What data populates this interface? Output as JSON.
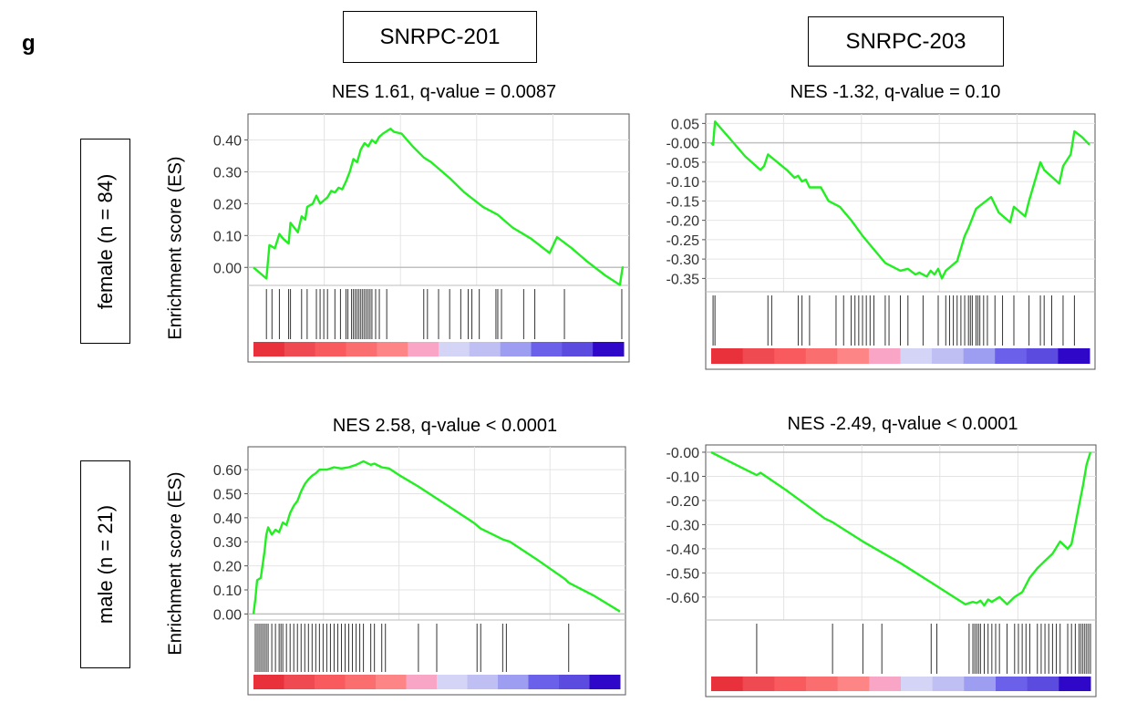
{
  "panel_label": "g",
  "columns": [
    "SNRPC-201",
    "SNRPC-203"
  ],
  "rows": [
    "female (n = 84)",
    "male (n = 21)"
  ],
  "chart_data": [
    {
      "type": "line",
      "column": "SNRPC-201",
      "row": "female (n = 84)",
      "title": "NES 1.61, q-value = 0.0087",
      "ylabel": "Enrichment score (ES)",
      "yticks": [
        "0.40",
        "0.30",
        "0.20",
        "0.10",
        "0.00"
      ],
      "ylim": [
        -0.045,
        0.47
      ],
      "x": [
        0,
        0.035,
        0.043,
        0.058,
        0.07,
        0.08,
        0.095,
        0.1,
        0.12,
        0.13,
        0.14,
        0.145,
        0.16,
        0.17,
        0.18,
        0.19,
        0.2,
        0.21,
        0.22,
        0.23,
        0.24,
        0.25,
        0.26,
        0.27,
        0.28,
        0.29,
        0.3,
        0.31,
        0.32,
        0.33,
        0.34,
        0.35,
        0.37,
        0.38,
        0.4,
        0.43,
        0.46,
        0.48,
        0.53,
        0.57,
        0.62,
        0.66,
        0.7,
        0.75,
        0.8,
        0.82,
        0.86,
        0.9,
        0.95,
        0.99,
        0.997,
        1.0
      ],
      "values": [
        0.0,
        -0.035,
        0.07,
        0.06,
        0.105,
        0.09,
        0.075,
        0.14,
        0.11,
        0.16,
        0.15,
        0.19,
        0.2,
        0.225,
        0.2,
        0.21,
        0.22,
        0.24,
        0.235,
        0.25,
        0.245,
        0.27,
        0.3,
        0.34,
        0.33,
        0.37,
        0.39,
        0.38,
        0.4,
        0.39,
        0.41,
        0.42,
        0.435,
        0.425,
        0.42,
        0.38,
        0.345,
        0.33,
        0.28,
        0.235,
        0.19,
        0.165,
        0.125,
        0.09,
        0.045,
        0.095,
        0.06,
        0.02,
        -0.025,
        -0.055,
        0.0,
        0.0
      ],
      "hits": [
        0.035,
        0.05,
        0.07,
        0.095,
        0.1,
        0.13,
        0.145,
        0.17,
        0.18,
        0.19,
        0.2,
        0.22,
        0.235,
        0.25,
        0.255,
        0.265,
        0.27,
        0.275,
        0.28,
        0.285,
        0.29,
        0.295,
        0.3,
        0.305,
        0.31,
        0.315,
        0.32,
        0.33,
        0.34,
        0.36,
        0.46,
        0.47,
        0.5,
        0.53,
        0.56,
        0.58,
        0.59,
        0.61,
        0.655,
        0.66,
        0.67,
        0.73,
        0.76,
        0.84,
        0.995
      ],
      "rank_colors": [
        "#e8313a",
        "#ef4a52",
        "#f85a5e",
        "#fb6e70",
        "#fd8585",
        "#f9a6c6",
        "#d4d4f6",
        "#bfbff3",
        "#9d9df2",
        "#6a60ea",
        "#5b4bde",
        "#2f07c8"
      ]
    },
    {
      "type": "line",
      "column": "SNRPC-203",
      "row": "female (n = 84)",
      "title": "NES -1.32, q-value = 0.10",
      "ylabel": "",
      "yticks": [
        "0.05",
        "-0.00",
        "-0.05",
        "-0.10",
        "-0.15",
        "-0.20",
        "-0.25",
        "-0.30",
        "-0.35"
      ],
      "ylim": [
        -0.375,
        0.065
      ],
      "x": [
        0,
        0.005,
        0.01,
        0.05,
        0.09,
        0.13,
        0.14,
        0.15,
        0.2,
        0.22,
        0.23,
        0.24,
        0.25,
        0.26,
        0.29,
        0.31,
        0.34,
        0.37,
        0.4,
        0.43,
        0.46,
        0.5,
        0.52,
        0.54,
        0.55,
        0.57,
        0.58,
        0.59,
        0.6,
        0.61,
        0.62,
        0.65,
        0.67,
        0.68,
        0.7,
        0.74,
        0.76,
        0.79,
        0.8,
        0.83,
        0.84,
        0.87,
        0.88,
        0.92,
        0.93,
        0.95,
        0.96,
        0.98,
        1.0
      ],
      "values": [
        0.0,
        -0.005,
        0.055,
        0.01,
        -0.035,
        -0.07,
        -0.06,
        -0.03,
        -0.07,
        -0.09,
        -0.085,
        -0.1,
        -0.095,
        -0.115,
        -0.115,
        -0.15,
        -0.165,
        -0.2,
        -0.24,
        -0.275,
        -0.31,
        -0.33,
        -0.325,
        -0.34,
        -0.335,
        -0.345,
        -0.33,
        -0.34,
        -0.325,
        -0.35,
        -0.33,
        -0.305,
        -0.24,
        -0.22,
        -0.17,
        -0.14,
        -0.18,
        -0.205,
        -0.165,
        -0.19,
        -0.15,
        -0.05,
        -0.07,
        -0.105,
        -0.06,
        -0.03,
        0.03,
        0.015,
        -0.005
      ],
      "hits": [
        0.005,
        0.01,
        0.15,
        0.16,
        0.23,
        0.24,
        0.26,
        0.33,
        0.35,
        0.37,
        0.38,
        0.39,
        0.4,
        0.41,
        0.42,
        0.43,
        0.46,
        0.47,
        0.5,
        0.52,
        0.56,
        0.6,
        0.62,
        0.63,
        0.64,
        0.65,
        0.66,
        0.67,
        0.68,
        0.685,
        0.69,
        0.7,
        0.705,
        0.71,
        0.72,
        0.73,
        0.75,
        0.77,
        0.8,
        0.84,
        0.87,
        0.88,
        0.9,
        0.93,
        0.96
      ],
      "rank_colors": [
        "#e8313a",
        "#ef4a52",
        "#f85a5e",
        "#fb6e70",
        "#fd8585",
        "#f9a6c6",
        "#d4d4f6",
        "#bfbff3",
        "#9d9df2",
        "#6a60ea",
        "#5b4bde",
        "#2f07c8"
      ]
    },
    {
      "type": "line",
      "column": "SNRPC-201",
      "row": "male (n = 21)",
      "title": "NES 2.58, q-value < 0.0001",
      "ylabel": "Enrichment score (ES)",
      "yticks": [
        "0.60",
        "0.50",
        "0.40",
        "0.30",
        "0.20",
        "0.10",
        "0.00"
      ],
      "ylim": [
        -0.01,
        0.68
      ],
      "x": [
        0,
        0.005,
        0.01,
        0.02,
        0.03,
        0.035,
        0.04,
        0.05,
        0.06,
        0.07,
        0.08,
        0.09,
        0.1,
        0.11,
        0.12,
        0.13,
        0.14,
        0.15,
        0.16,
        0.17,
        0.18,
        0.2,
        0.22,
        0.24,
        0.26,
        0.28,
        0.3,
        0.32,
        0.33,
        0.35,
        0.37,
        0.4,
        0.45,
        0.5,
        0.55,
        0.6,
        0.62,
        0.68,
        0.7,
        0.77,
        0.85,
        0.86,
        0.93,
        1.0
      ],
      "values": [
        0.0,
        0.06,
        0.14,
        0.15,
        0.26,
        0.33,
        0.36,
        0.33,
        0.35,
        0.34,
        0.38,
        0.37,
        0.42,
        0.45,
        0.47,
        0.51,
        0.54,
        0.56,
        0.575,
        0.585,
        0.6,
        0.6,
        0.61,
        0.605,
        0.61,
        0.62,
        0.635,
        0.62,
        0.625,
        0.61,
        0.605,
        0.575,
        0.53,
        0.48,
        0.43,
        0.38,
        0.355,
        0.31,
        0.3,
        0.23,
        0.145,
        0.13,
        0.075,
        0.01
      ],
      "hits": [
        0.005,
        0.01,
        0.015,
        0.02,
        0.025,
        0.03,
        0.035,
        0.04,
        0.05,
        0.06,
        0.07,
        0.075,
        0.08,
        0.09,
        0.1,
        0.11,
        0.12,
        0.13,
        0.14,
        0.15,
        0.16,
        0.17,
        0.18,
        0.19,
        0.2,
        0.21,
        0.22,
        0.23,
        0.24,
        0.25,
        0.26,
        0.27,
        0.28,
        0.29,
        0.3,
        0.32,
        0.33,
        0.35,
        0.36,
        0.45,
        0.5,
        0.61,
        0.62,
        0.68,
        0.69,
        0.86
      ],
      "rank_colors": [
        "#e8313a",
        "#ef4a52",
        "#f85a5e",
        "#fb6e70",
        "#fd8585",
        "#f9a6c6",
        "#d4d4f6",
        "#bfbff3",
        "#9d9df2",
        "#6a60ea",
        "#5b4bde",
        "#2f07c8"
      ]
    },
    {
      "type": "line",
      "column": "SNRPC-203",
      "row": "male (n = 21)",
      "title": "NES -2.49, q-value < 0.0001",
      "ylabel": "",
      "yticks": [
        "-0.00",
        "-0.10",
        "-0.20",
        "-0.30",
        "-0.40",
        "-0.50",
        "-0.60"
      ],
      "ylim": [
        -0.68,
        0.015
      ],
      "x": [
        0,
        0.05,
        0.12,
        0.13,
        0.2,
        0.3,
        0.32,
        0.4,
        0.5,
        0.58,
        0.62,
        0.67,
        0.69,
        0.7,
        0.71,
        0.72,
        0.73,
        0.74,
        0.76,
        0.78,
        0.8,
        0.82,
        0.84,
        0.86,
        0.88,
        0.9,
        0.92,
        0.94,
        0.95,
        0.96,
        0.97,
        0.98,
        0.99,
        1.0
      ],
      "values": [
        0.0,
        -0.04,
        -0.095,
        -0.085,
        -0.16,
        -0.275,
        -0.29,
        -0.37,
        -0.46,
        -0.54,
        -0.58,
        -0.63,
        -0.62,
        -0.625,
        -0.615,
        -0.635,
        -0.61,
        -0.62,
        -0.6,
        -0.63,
        -0.6,
        -0.58,
        -0.52,
        -0.48,
        -0.45,
        -0.42,
        -0.37,
        -0.4,
        -0.38,
        -0.3,
        -0.22,
        -0.14,
        -0.05,
        0.0
      ],
      "hits": [
        0.12,
        0.32,
        0.4,
        0.45,
        0.58,
        0.595,
        0.68,
        0.69,
        0.695,
        0.7,
        0.705,
        0.71,
        0.72,
        0.73,
        0.74,
        0.75,
        0.76,
        0.78,
        0.8,
        0.81,
        0.82,
        0.83,
        0.84,
        0.86,
        0.87,
        0.88,
        0.89,
        0.9,
        0.91,
        0.92,
        0.94,
        0.95,
        0.96,
        0.97,
        0.975,
        0.98,
        0.985,
        0.99,
        0.995,
        1.0
      ],
      "rank_colors": [
        "#e8313a",
        "#ef4a52",
        "#f85a5e",
        "#fb6e70",
        "#fd8585",
        "#f9a6c6",
        "#d4d4f6",
        "#bfbff3",
        "#9d9df2",
        "#6a60ea",
        "#5b4bde",
        "#2f07c8"
      ]
    }
  ],
  "colors": {
    "curve": "#22ee22",
    "zero_line": "#c0c0c0",
    "grid": "#e4e4e4",
    "hit": "#333333",
    "frame": "#555555"
  }
}
